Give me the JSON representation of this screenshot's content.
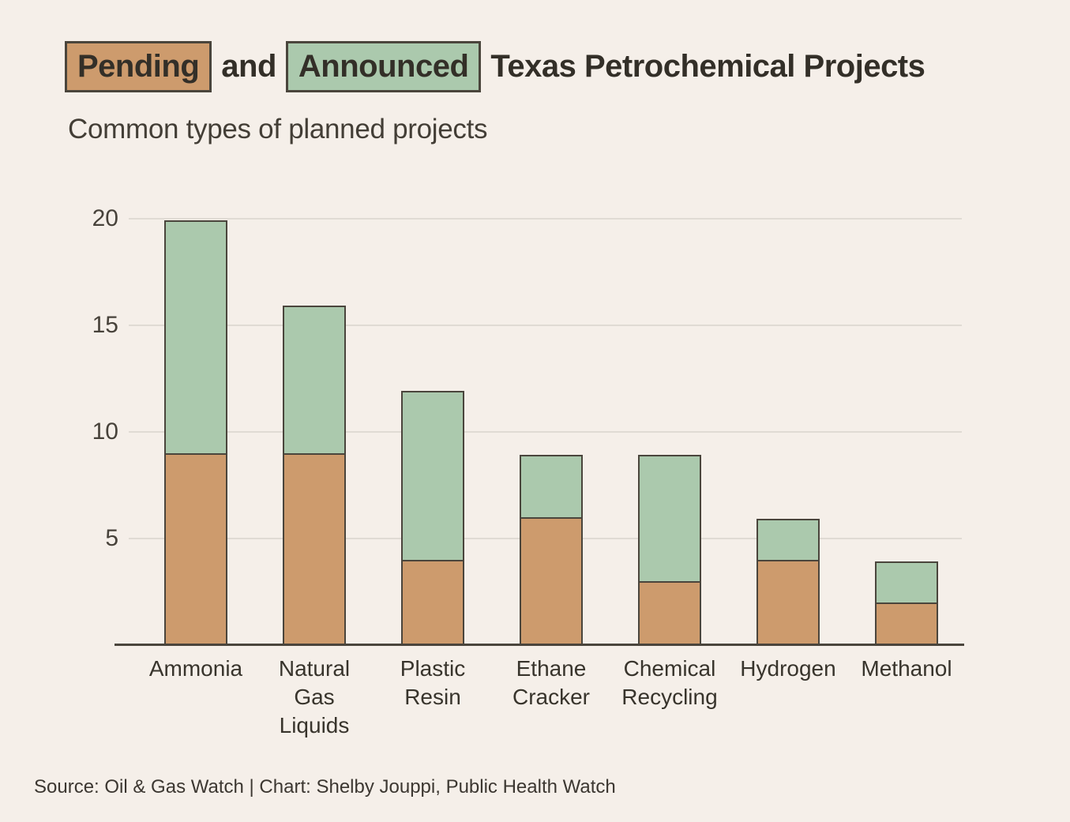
{
  "title": {
    "pending_label": "Pending",
    "and_text": "and",
    "announced_label": "Announced",
    "rest_text": "Texas Petrochemical Projects"
  },
  "subtitle": "Common types of planned projects",
  "footer": {
    "source": "Source: Oil & Gas Watch | Chart: Shelby Jouppi, Public Health Watch"
  },
  "colors": {
    "background": "#f5efe9",
    "pending": "#cd9b6d",
    "announced": "#abc9ad",
    "bar_border": "#4a453c",
    "axis_line": "#4a453c",
    "gridline": "#e0dbd4",
    "title_text": "#332f28",
    "subtitle_text": "#433e36",
    "tick_text": "#47423a"
  },
  "chart_data": {
    "type": "bar",
    "stacked": true,
    "title": "Pending and Announced Texas Petrochemical Projects",
    "subtitle": "Common types of planned projects",
    "categories": [
      "Ammonia",
      "Natural Gas Liquids",
      "Plastic Resin",
      "Ethane Cracker",
      "Chemical Recycling",
      "Hydrogen",
      "Methanol"
    ],
    "categories_lines": [
      [
        "Ammonia"
      ],
      [
        "Natural",
        "Gas",
        "Liquids"
      ],
      [
        "Plastic",
        "Resin"
      ],
      [
        "Ethane",
        "Cracker"
      ],
      [
        "Chemical",
        "Recycling"
      ],
      [
        "Hydrogen"
      ],
      [
        "Methanol"
      ]
    ],
    "series": [
      {
        "name": "Pending",
        "color": "#cd9b6d",
        "values": [
          9,
          9,
          4,
          6,
          3,
          4,
          2
        ]
      },
      {
        "name": "Announced",
        "color": "#abc9ad",
        "values": [
          11,
          7,
          8,
          3,
          6,
          2,
          2
        ]
      }
    ],
    "totals": [
      20,
      16,
      12,
      9,
      9,
      6,
      4
    ],
    "xlabel": "",
    "ylabel": "",
    "ylim": [
      0,
      20
    ],
    "yticks": [
      5,
      10,
      15,
      20
    ],
    "grid": true,
    "legend_position": "inline-in-title"
  }
}
